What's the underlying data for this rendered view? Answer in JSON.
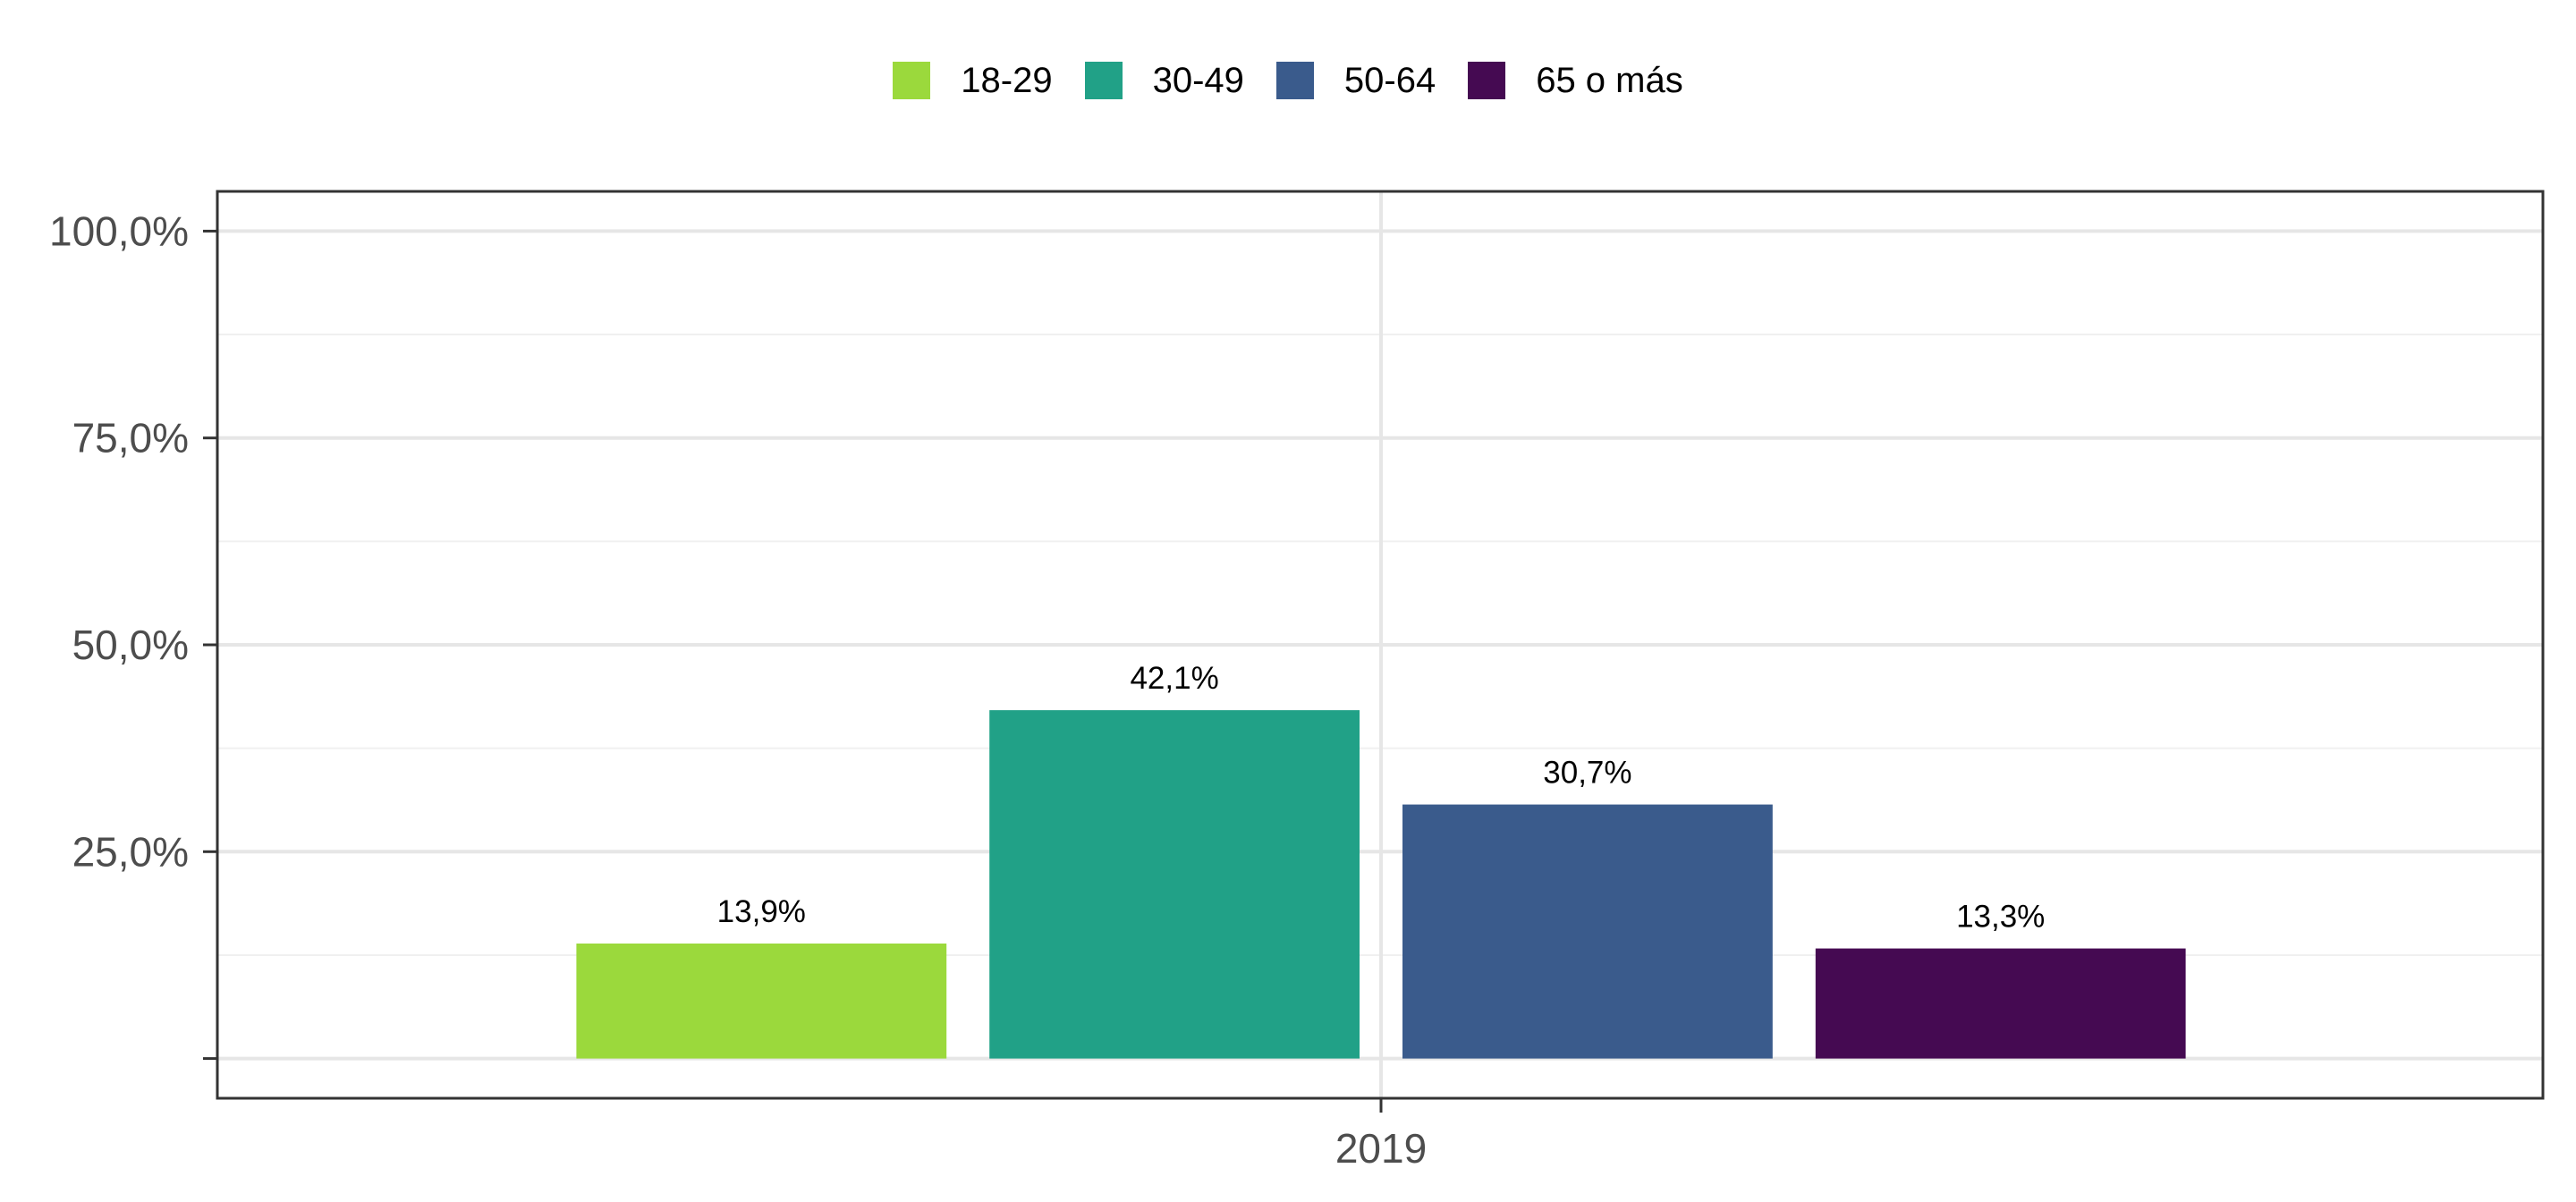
{
  "chart_data": {
    "type": "bar",
    "categories": [
      "2019"
    ],
    "series": [
      {
        "name": "18-29",
        "values": [
          13.9
        ],
        "label": "13,9%",
        "color": "#9bd93c"
      },
      {
        "name": "30-49",
        "values": [
          42.1
        ],
        "label": "42,1%",
        "color": "#21a187"
      },
      {
        "name": "50-64",
        "values": [
          30.7
        ],
        "label": "30,7%",
        "color": "#3a5b8c"
      },
      {
        "name": "65 o más",
        "values": [
          13.3
        ],
        "label": "13,3%",
        "color": "#450a52"
      }
    ],
    "y_tick_values": [
      0,
      25,
      50,
      75,
      100
    ],
    "y_tick_labels": [
      "",
      "25,0%",
      "50,0%",
      "75,0%",
      "100,0%"
    ],
    "ylim": [
      -4.8,
      104.8
    ],
    "title": "",
    "xlabel": "",
    "ylabel": "",
    "legend_position": "top",
    "grid": true
  }
}
